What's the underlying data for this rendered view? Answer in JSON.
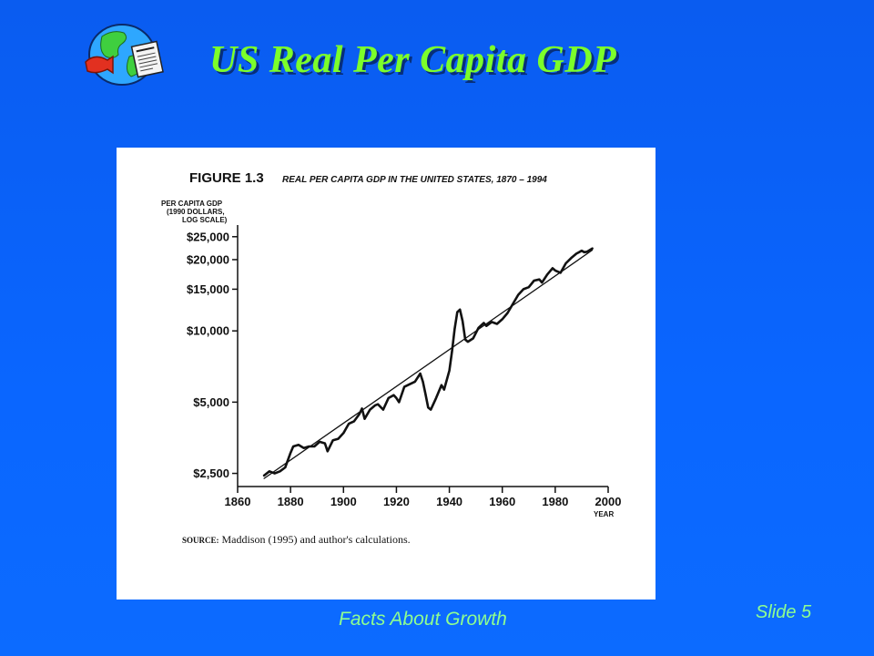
{
  "slide": {
    "title": "US Real Per Capita GDP",
    "footer": "Facts About  Growth",
    "slide_number": "Slide  5",
    "logo_icon": "globe-newspaper-icon"
  },
  "figure": {
    "label": "FIGURE 1.3",
    "heading": "REAL PER CAPITA GDP IN THE UNITED STATES, 1870 – 1994",
    "source_prefix": "SOURCE:",
    "source_text": " Maddison (1995) and author's calculations."
  },
  "chart_data": {
    "type": "line",
    "title": "REAL PER CAPITA GDP IN THE UNITED STATES, 1870 – 1994",
    "ylabel_lines": [
      "PER CAPITA GDP",
      "(1990 DOLLARS,",
      "LOG SCALE)"
    ],
    "xlabel": "YEAR",
    "log_scale_y": true,
    "xlim": [
      1860,
      2000
    ],
    "ylim": [
      2200,
      28000
    ],
    "x_ticks": [
      1860,
      1880,
      1900,
      1920,
      1940,
      1960,
      1980,
      2000
    ],
    "y_ticks": [
      2500,
      5000,
      10000,
      15000,
      20000,
      25000
    ],
    "y_tick_labels": [
      "$2,500",
      "$5,000",
      "$10,000",
      "$15,000",
      "$20,000",
      "$25,000"
    ],
    "grid": false,
    "series": [
      {
        "role": "actual",
        "x": [
          1870,
          1872,
          1874,
          1876,
          1878,
          1880,
          1881,
          1883,
          1885,
          1887,
          1889,
          1891,
          1893,
          1894,
          1896,
          1898,
          1900,
          1902,
          1904,
          1906,
          1907,
          1908,
          1910,
          1912,
          1913,
          1915,
          1917,
          1919,
          1920,
          1921,
          1923,
          1925,
          1927,
          1929,
          1930,
          1931,
          1932,
          1933,
          1935,
          1937,
          1938,
          1940,
          1941,
          1942,
          1943,
          1944,
          1945,
          1946,
          1947,
          1949,
          1951,
          1953,
          1954,
          1956,
          1958,
          1960,
          1962,
          1964,
          1966,
          1968,
          1970,
          1972,
          1974,
          1975,
          1977,
          1979,
          1980,
          1982,
          1984,
          1986,
          1988,
          1990,
          1991,
          1992,
          1994
        ],
        "y": [
          2450,
          2550,
          2500,
          2550,
          2650,
          3050,
          3250,
          3300,
          3200,
          3250,
          3250,
          3400,
          3350,
          3100,
          3450,
          3500,
          3700,
          4050,
          4150,
          4450,
          4700,
          4250,
          4650,
          4850,
          4900,
          4650,
          5200,
          5350,
          5200,
          5000,
          5800,
          5950,
          6100,
          6600,
          6100,
          5400,
          4750,
          4650,
          5200,
          5900,
          5650,
          6800,
          8200,
          10200,
          12000,
          12300,
          11000,
          9200,
          9000,
          9300,
          10300,
          10800,
          10500,
          10900,
          10700,
          11200,
          11900,
          13000,
          14200,
          15000,
          15300,
          16300,
          16500,
          16000,
          17300,
          18400,
          18000,
          17600,
          19300,
          20300,
          21200,
          21800,
          21500,
          21600,
          22300
        ]
      },
      {
        "role": "trend",
        "x": [
          1870,
          1994
        ],
        "y": [
          2380,
          21950
        ]
      }
    ]
  }
}
